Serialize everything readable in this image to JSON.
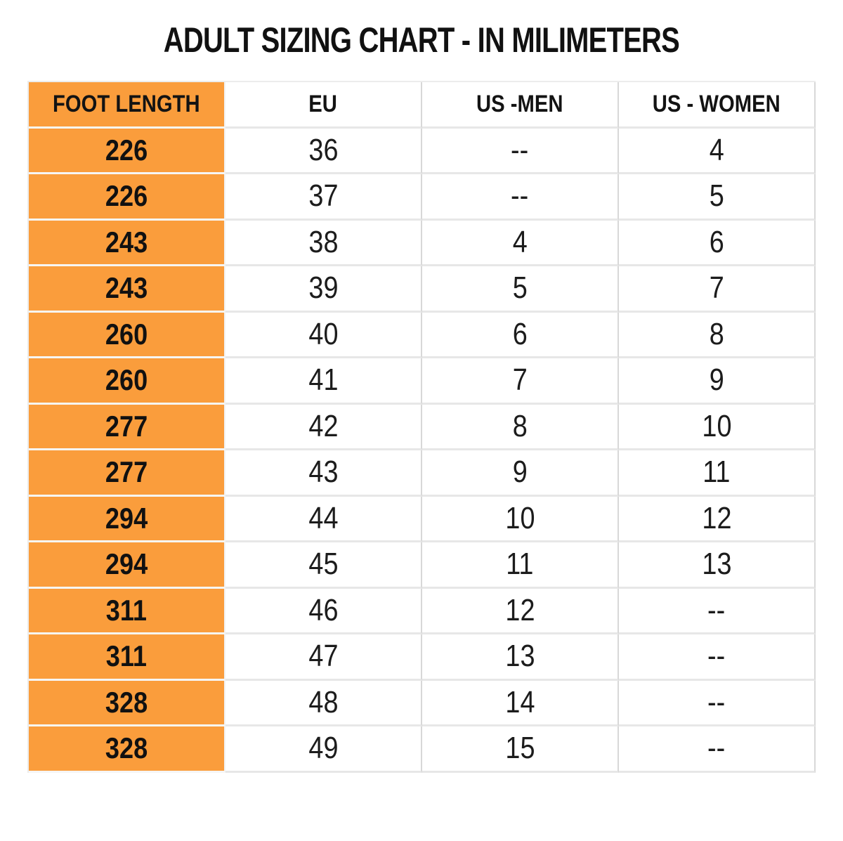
{
  "title": "ADULT SIZING CHART - IN MILIMETERS",
  "colors": {
    "orange": "#FA9D3C",
    "text": "#141414",
    "grid_vertical": "#d8d8d8",
    "grid_horizontal": "#e7e7e7",
    "background": "#ffffff"
  },
  "chart_data": {
    "type": "table",
    "title": "ADULT SIZING CHART - IN MILIMETERS",
    "columns": [
      "FOOT LENGTH",
      "EU",
      "US -MEN",
      "US - WOMEN"
    ],
    "highlight_column": "FOOT LENGTH",
    "rows": [
      [
        "226",
        "36",
        "--",
        "4"
      ],
      [
        "226",
        "37",
        "--",
        "5"
      ],
      [
        "243",
        "38",
        "4",
        "6"
      ],
      [
        "243",
        "39",
        "5",
        "7"
      ],
      [
        "260",
        "40",
        "6",
        "8"
      ],
      [
        "260",
        "41",
        "7",
        "9"
      ],
      [
        "277",
        "42",
        "8",
        "10"
      ],
      [
        "277",
        "43",
        "9",
        "11"
      ],
      [
        "294",
        "44",
        "10",
        "12"
      ],
      [
        "294",
        "45",
        "11",
        "13"
      ],
      [
        "311",
        "46",
        "12",
        "--"
      ],
      [
        "311",
        "47",
        "13",
        "--"
      ],
      [
        "328",
        "48",
        "14",
        "--"
      ],
      [
        "328",
        "49",
        "15",
        "--"
      ]
    ]
  }
}
